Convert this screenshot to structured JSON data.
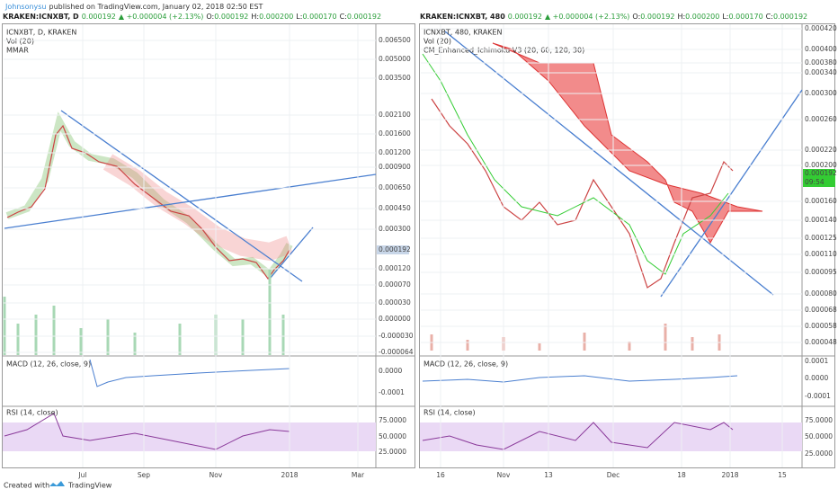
{
  "header": {
    "author": "Johnsonysu",
    "published": "published on TradingView.com, January 02, 2018 02:50 EST"
  },
  "charts": [
    {
      "symbol": "KRAKEN:ICNXBT, D",
      "last": "0.000192",
      "change": "▲ +0.000004 (+2.13%)",
      "ohlc": [
        {
          "label": "O:",
          "value": "0.000192"
        },
        {
          "label": "H:",
          "value": "0.000200"
        },
        {
          "label": "L:",
          "value": "0.000170"
        },
        {
          "label": "C:",
          "value": "0.000192"
        }
      ],
      "legend": [
        "ICNXBT, D, KRAKEN",
        "Vol (20)",
        "MMAR"
      ],
      "price_axis": [
        "0.006500",
        "0.005000",
        "0.003500",
        "0.002100",
        "0.001600",
        "0.001200",
        "0.000900",
        "0.000650",
        "0.000450",
        "0.000300",
        "0.000120",
        "0.000070",
        "0.000030",
        "0.000000",
        "-0.000030",
        "-0.000064"
      ],
      "current_price": "0.000192",
      "time_axis": [
        "Jul",
        "Sep",
        "Nov",
        "2018",
        "Mar"
      ],
      "macd": {
        "label": "MACD (12, 26, close, 9)",
        "axis": [
          "0.0000",
          "-0.0001"
        ]
      },
      "rsi": {
        "label": "RSI (14, close)",
        "axis": [
          "75.0000",
          "50.0000",
          "25.0000"
        ]
      }
    },
    {
      "symbol": "KRAKEN:ICNXBT, 480",
      "last": "0.000192",
      "change": "▲ +0.000004 (+2.13%)",
      "ohlc": [
        {
          "label": "O:",
          "value": "0.000192"
        },
        {
          "label": "H:",
          "value": "0.000200"
        },
        {
          "label": "L:",
          "value": "0.000170"
        },
        {
          "label": "C:",
          "value": "0.000192"
        }
      ],
      "legend": [
        "ICNXBT, 480, KRAKEN",
        "Vol (20)",
        "CM_Enhanced_Ichimoku V3 (20, 60, 120, 30)"
      ],
      "price_axis": [
        "0.000420",
        "0.000400",
        "0.000380",
        "0.000340",
        "0.000300",
        "0.000260",
        "0.000220",
        "0.000200",
        "0.000160",
        "0.000140",
        "0.000125",
        "0.000110",
        "0.000095",
        "0.000080",
        "0.000068",
        "0.000058",
        "0.000048"
      ],
      "current_price": "0.000192",
      "countdown": "09:54",
      "time_axis": [
        "16",
        "Nov",
        "13",
        "Dec",
        "18",
        "2018",
        "15"
      ],
      "macd": {
        "label": "MACD (12, 26, close, 9)",
        "axis": [
          "0.0001",
          "0.0000",
          "-0.0001"
        ]
      },
      "rsi": {
        "label": "RSI (14, close)",
        "axis": [
          "75.0000",
          "50.0000",
          "25.0000"
        ]
      }
    }
  ],
  "footer": {
    "created": "Created with",
    "brand": "TradingView"
  }
}
